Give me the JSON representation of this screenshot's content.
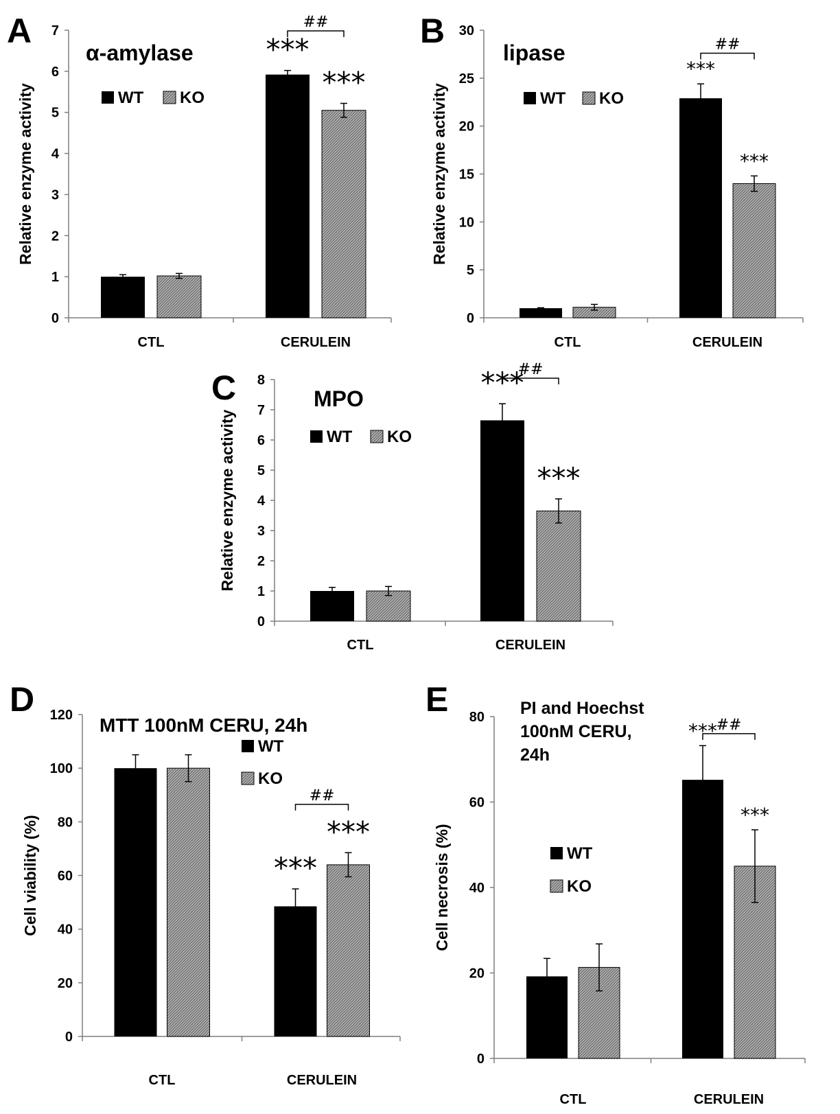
{
  "colors": {
    "wt": "#000000",
    "ko": "#a6a6a6",
    "ko_hatch": "#5a5a5a",
    "axis": "#7f7f7f",
    "text": "#000000"
  },
  "chart_data": [
    {
      "id": "A",
      "type": "bar",
      "panel_letter": "A",
      "title": "α-amylase",
      "ylabel": "Relative enzyme activity",
      "xlabel": "",
      "categories": [
        "CTL",
        "CERULEIN"
      ],
      "series": [
        {
          "name": "WT",
          "values": [
            1.0,
            5.92
          ],
          "errors": [
            0.05,
            0.1
          ]
        },
        {
          "name": "KO",
          "values": [
            1.02,
            5.05
          ],
          "errors": [
            0.06,
            0.17
          ]
        }
      ],
      "ylim": [
        0,
        7
      ],
      "yticks": [
        "0",
        "1",
        "2",
        "3",
        "4",
        "5",
        "6",
        "7"
      ],
      "legend": [
        "WT",
        "KO"
      ],
      "legend_position": "top-left",
      "significance": {
        "WT": [
          "",
          "***"
        ],
        "KO": [
          "",
          "***"
        ]
      },
      "bracket": {
        "category": "CERULEIN",
        "label": "##"
      }
    },
    {
      "id": "B",
      "type": "bar",
      "panel_letter": "B",
      "title": "lipase",
      "ylabel": "Relative enzyme activity",
      "xlabel": "",
      "categories": [
        "CTL",
        "CERULEIN"
      ],
      "series": [
        {
          "name": "WT",
          "values": [
            1.0,
            22.9
          ],
          "errors": [
            0.05,
            1.5
          ]
        },
        {
          "name": "KO",
          "values": [
            1.1,
            14.0
          ],
          "errors": [
            0.3,
            0.8
          ]
        }
      ],
      "ylim": [
        0,
        30
      ],
      "yticks": [
        "0",
        "5",
        "10",
        "15",
        "20",
        "25",
        "30"
      ],
      "legend": [
        "WT",
        "KO"
      ],
      "legend_position": "top-left",
      "significance": {
        "WT": [
          "",
          "***"
        ],
        "KO": [
          "",
          "***"
        ]
      },
      "bracket": {
        "category": "CERULEIN",
        "label": "##"
      }
    },
    {
      "id": "C",
      "type": "bar",
      "panel_letter": "C",
      "title": "MPO",
      "ylabel": "Relative enzyme activity",
      "xlabel": "",
      "categories": [
        "CTL",
        "CERULEIN"
      ],
      "series": [
        {
          "name": "WT",
          "values": [
            1.0,
            6.65
          ],
          "errors": [
            0.12,
            0.55
          ]
        },
        {
          "name": "KO",
          "values": [
            1.0,
            3.65
          ],
          "errors": [
            0.15,
            0.4
          ]
        }
      ],
      "ylim": [
        0,
        8
      ],
      "yticks": [
        "0",
        "1",
        "2",
        "3",
        "4",
        "5",
        "6",
        "7",
        "8"
      ],
      "legend": [
        "WT",
        "KO"
      ],
      "legend_position": "top-left",
      "significance": {
        "WT": [
          "",
          "***"
        ],
        "KO": [
          "",
          "***"
        ]
      },
      "bracket": {
        "category": "CERULEIN",
        "label": "##"
      }
    },
    {
      "id": "D",
      "type": "bar",
      "panel_letter": "D",
      "title": "MTT 100nM CERU, 24h",
      "ylabel": "Cell viability (%)",
      "xlabel": "",
      "categories": [
        "CTL",
        "CERULEIN"
      ],
      "series": [
        {
          "name": "WT",
          "values": [
            100,
            48.5
          ],
          "errors": [
            5,
            6.5
          ]
        },
        {
          "name": "KO",
          "values": [
            100,
            64
          ],
          "errors": [
            5,
            4.5
          ]
        }
      ],
      "ylim": [
        0,
        120
      ],
      "yticks": [
        "0",
        "20",
        "40",
        "60",
        "80",
        "100",
        "120"
      ],
      "legend": [
        "WT",
        "KO"
      ],
      "legend_position": "top-right",
      "significance": {
        "WT": [
          "",
          "***"
        ],
        "KO": [
          "",
          "***"
        ]
      },
      "bracket": {
        "category": "CERULEIN",
        "label": "##"
      }
    },
    {
      "id": "E",
      "type": "bar",
      "panel_letter": "E",
      "title": "PI and Hoechst 100nM CERU, 24h",
      "title_lines": [
        "PI and Hoechst",
        "100nM CERU,",
        "24h"
      ],
      "ylabel": "Cell necrosis (%)",
      "xlabel": "",
      "categories": [
        "CTL",
        "CERULEIN"
      ],
      "series": [
        {
          "name": "WT",
          "values": [
            19.2,
            65.2
          ],
          "errors": [
            4.2,
            8.0
          ]
        },
        {
          "name": "KO",
          "values": [
            21.3,
            45.0
          ],
          "errors": [
            5.5,
            8.5
          ]
        }
      ],
      "ylim": [
        0,
        80
      ],
      "yticks": [
        "0",
        "20",
        "40",
        "60",
        "80"
      ],
      "legend": [
        "WT",
        "KO"
      ],
      "legend_position": "center",
      "significance": {
        "WT": [
          "",
          "***"
        ],
        "KO": [
          "",
          "***"
        ]
      },
      "bracket": {
        "category": "CERULEIN",
        "label": "##"
      }
    }
  ]
}
